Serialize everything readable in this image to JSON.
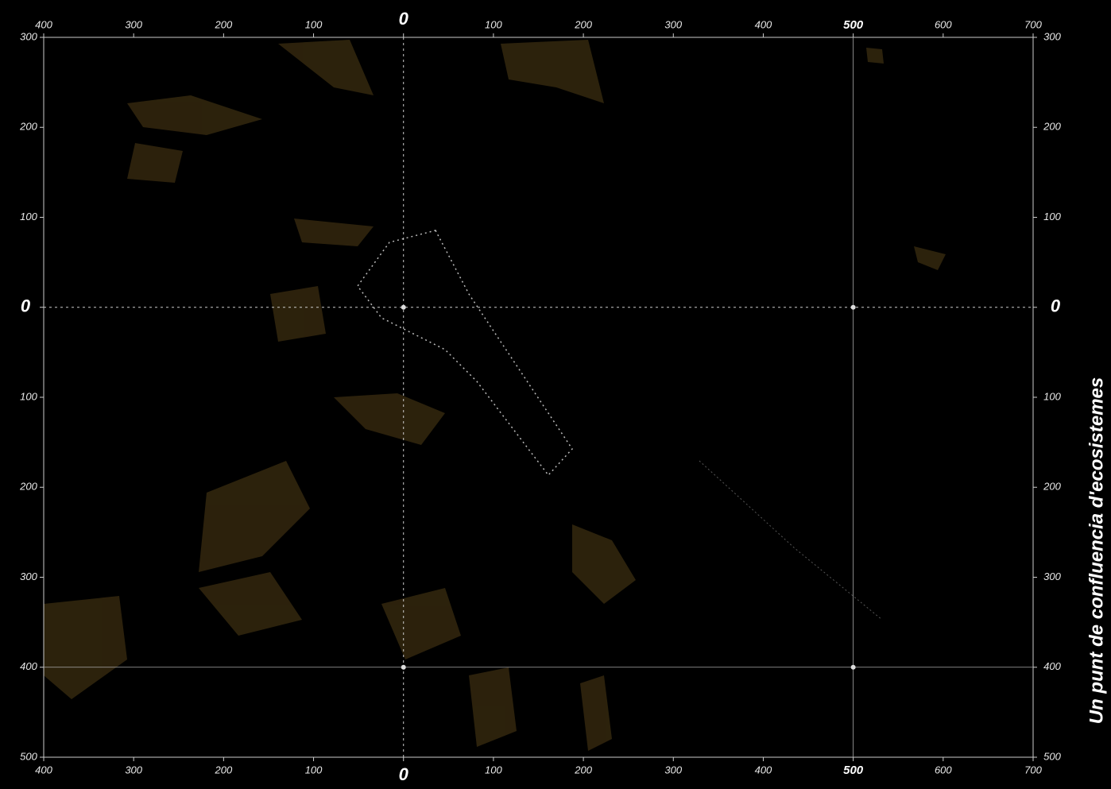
{
  "map": {
    "title": "Un punt de confluencia d'ecosistemes",
    "x_labels": [
      "400",
      "300",
      "200",
      "100",
      "0",
      "100",
      "200",
      "300",
      "400",
      "500",
      "600",
      "700"
    ],
    "y_labels": [
      "300",
      "200",
      "100",
      "0",
      "100",
      "200",
      "300",
      "400",
      "500"
    ]
  }
}
